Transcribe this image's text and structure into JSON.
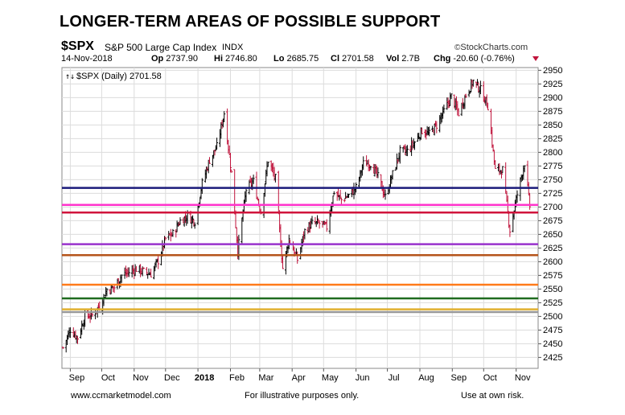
{
  "headline": "LONGER-TERM AREAS OF POSSIBLE SUPPORT",
  "header": {
    "symbol": "$SPX",
    "full_name": "S&P 500 Large Cap Index",
    "exchange": "INDX",
    "copyright": "StockCharts.com",
    "date": "14-Nov-2018",
    "quote": [
      {
        "label": "Op",
        "value": "2737.90"
      },
      {
        "label": "Hi",
        "value": "2746.80"
      },
      {
        "label": "Lo",
        "value": "2685.75"
      },
      {
        "label": "Cl",
        "value": "2701.58"
      },
      {
        "label": "Vol",
        "value": "2.7B"
      },
      {
        "label": "Chg",
        "value": "-20.60 (-0.76%)"
      }
    ],
    "down_color": "#c0143c"
  },
  "legend_text": "$SPX (Daily) 2701.58",
  "footer": {
    "left": "www.ccmarketmodel.com",
    "middle": "For illustrative purposes only.",
    "right": "Use at own risk."
  },
  "chart_data": {
    "type": "line",
    "series_style": "ohlc-bars",
    "ylim": [
      2405,
      2955
    ],
    "yticks": [
      2425,
      2450,
      2475,
      2500,
      2525,
      2550,
      2575,
      2600,
      2625,
      2650,
      2675,
      2700,
      2725,
      2750,
      2775,
      2800,
      2825,
      2850,
      2875,
      2900,
      2925,
      2950
    ],
    "xlim": [
      "2017-08-24",
      "2018-11-22"
    ],
    "xticks": [
      {
        "label": "Sep",
        "date": "2017-09-01"
      },
      {
        "label": "Oct",
        "date": "2017-10-01"
      },
      {
        "label": "Nov",
        "date": "2017-11-01"
      },
      {
        "label": "Dec",
        "date": "2017-12-01"
      },
      {
        "label": "2018",
        "date": "2018-01-01"
      },
      {
        "label": "Feb",
        "date": "2018-02-01"
      },
      {
        "label": "Mar",
        "date": "2018-03-01"
      },
      {
        "label": "Apr",
        "date": "2018-04-01"
      },
      {
        "label": "May",
        "date": "2018-05-01"
      },
      {
        "label": "Jun",
        "date": "2018-06-01"
      },
      {
        "label": "Jul",
        "date": "2018-07-01"
      },
      {
        "label": "Aug",
        "date": "2018-08-01"
      },
      {
        "label": "Sep",
        "date": "2018-09-01"
      },
      {
        "label": "Oct",
        "date": "2018-10-01"
      },
      {
        "label": "Nov",
        "date": "2018-11-01"
      }
    ],
    "grid": true,
    "close_series": {
      "x": [
        "2017-08-25",
        "2017-09-01",
        "2017-09-08",
        "2017-09-15",
        "2017-09-22",
        "2017-09-29",
        "2017-10-06",
        "2017-10-13",
        "2017-10-20",
        "2017-10-27",
        "2017-11-03",
        "2017-11-10",
        "2017-11-17",
        "2017-11-24",
        "2017-12-01",
        "2017-12-08",
        "2017-12-15",
        "2017-12-22",
        "2017-12-29",
        "2018-01-05",
        "2018-01-12",
        "2018-01-19",
        "2018-01-26",
        "2018-02-02",
        "2018-02-08",
        "2018-02-16",
        "2018-02-23",
        "2018-03-02",
        "2018-03-09",
        "2018-03-16",
        "2018-03-23",
        "2018-03-29",
        "2018-04-06",
        "2018-04-13",
        "2018-04-20",
        "2018-04-27",
        "2018-05-04",
        "2018-05-11",
        "2018-05-18",
        "2018-05-25",
        "2018-06-01",
        "2018-06-08",
        "2018-06-15",
        "2018-06-22",
        "2018-06-29",
        "2018-07-06",
        "2018-07-13",
        "2018-07-20",
        "2018-07-27",
        "2018-08-03",
        "2018-08-10",
        "2018-08-17",
        "2018-08-24",
        "2018-08-31",
        "2018-09-07",
        "2018-09-14",
        "2018-09-21",
        "2018-09-28",
        "2018-10-05",
        "2018-10-12",
        "2018-10-19",
        "2018-10-26",
        "2018-11-02",
        "2018-11-09",
        "2018-11-14"
      ],
      "close": [
        2443,
        2476,
        2461,
        2500,
        2502,
        2519,
        2549,
        2553,
        2575,
        2581,
        2587,
        2582,
        2578,
        2602,
        2642,
        2651,
        2675,
        2683,
        2674,
        2743,
        2786,
        2810,
        2872,
        2762,
        2619,
        2732,
        2747,
        2691,
        2786,
        2752,
        2588,
        2641,
        2604,
        2656,
        2670,
        2670,
        2663,
        2728,
        2713,
        2721,
        2735,
        2779,
        2780,
        2755,
        2718,
        2760,
        2801,
        2802,
        2819,
        2840,
        2833,
        2850,
        2875,
        2902,
        2872,
        2905,
        2930,
        2914,
        2885,
        2767,
        2768,
        2658,
        2723,
        2781,
        2701.58
      ]
    },
    "support_levels": [
      {
        "value": 2735,
        "color": "#1a1a7a"
      },
      {
        "value": 2704,
        "color": "#ff33cc"
      },
      {
        "value": 2690,
        "color": "#d0143c"
      },
      {
        "value": 2632,
        "color": "#9933cc"
      },
      {
        "value": 2612,
        "color": "#b5541b"
      },
      {
        "value": 2558,
        "color": "#ff7a1a"
      },
      {
        "value": 2533,
        "color": "#1f6b1f"
      },
      {
        "value": 2513,
        "color": "#e0b030"
      },
      {
        "value": 2508,
        "color": "#999999"
      }
    ],
    "up_color": "#000000",
    "down_color": "#c0143c"
  }
}
